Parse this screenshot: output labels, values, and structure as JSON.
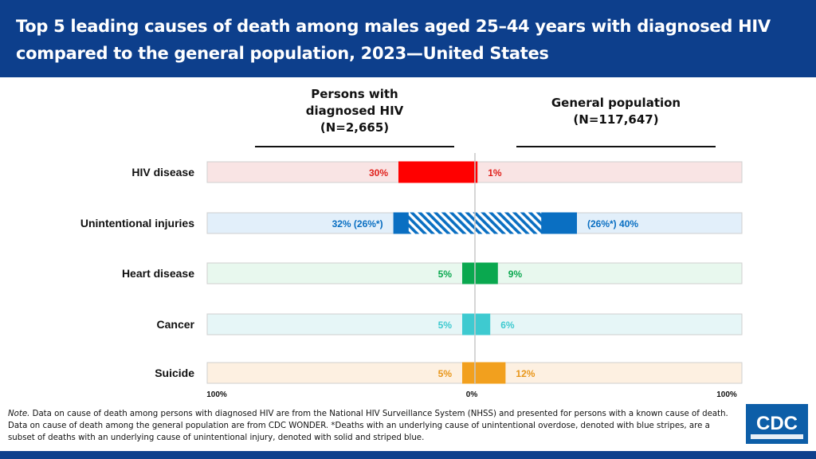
{
  "header": {
    "title": "Top 5 leading causes of death among males aged 25–44 years with diagnosed HIV compared to the general population, 2023—United States"
  },
  "panels": {
    "left": {
      "line1": "Persons with",
      "line2": "diagnosed HIV",
      "line3": "(N=2,665)"
    },
    "right": {
      "line1": "General population",
      "line2": "(N=117,647)"
    }
  },
  "chart_data": {
    "type": "bar",
    "orientation": "horizontal-diverging",
    "categories": [
      "HIV disease",
      "Unintentional injuries",
      "Heart disease",
      "Cancer",
      "Suicide"
    ],
    "series": [
      {
        "name": "Persons with diagnosed HIV (N=2,665)",
        "direction": "left",
        "values": [
          30,
          32,
          5,
          5,
          5
        ],
        "labels": [
          "30%",
          "32% (26%*)",
          "5%",
          "5%",
          "5%"
        ]
      },
      {
        "name": "General population (N=117,647)",
        "direction": "right",
        "values": [
          1,
          40,
          9,
          6,
          12
        ],
        "labels": [
          "1%",
          "(26%*) 40%",
          "9%",
          "6%",
          "12%"
        ]
      }
    ],
    "striped_subset": {
      "category": "Unintentional injuries",
      "left": 26,
      "right": 26
    },
    "colors": {
      "HIV disease": {
        "bar": "#ff0000",
        "band": "#f9e4e4",
        "text": "#e0201b"
      },
      "Unintentional injuries": {
        "bar": "#0a6fc2",
        "band": "#e2effa",
        "text": "#0a6fc2"
      },
      "Heart disease": {
        "bar": "#0aa84f",
        "band": "#e8f8ee",
        "text": "#0aa84f"
      },
      "Cancer": {
        "bar": "#3ecad0",
        "band": "#e6f6f7",
        "text": "#3ecad0"
      },
      "Suicide": {
        "bar": "#f2a01e",
        "band": "#fdf0e1",
        "text": "#e8961a"
      }
    },
    "xlim": [
      -100,
      100
    ],
    "axis_labels": {
      "left": "100%",
      "center": "0%",
      "right": "100%"
    }
  },
  "note": {
    "lead": "Note.",
    "text": " Data on cause of death among persons with diagnosed HIV are from the National HIV Surveillance System (NHSS) and presented for persons with a known cause of death. Data on cause of death among the general population are from CDC WONDER. *Deaths with an underlying cause of unintentional overdose, denoted with blue stripes, are a subset of deaths with an underlying cause of unintentional injury, denoted with solid and striped blue."
  },
  "logo": {
    "text": "CDC",
    "color": "#0d5ea8"
  }
}
